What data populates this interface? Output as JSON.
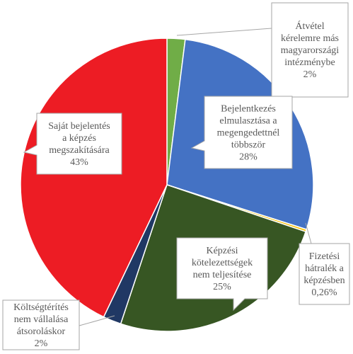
{
  "chart_data": {
    "type": "pie",
    "title": "",
    "legend": "none",
    "series": [
      {
        "slices": [
          {
            "label": "Átvétel kérelemre más magyarországi intézménybe",
            "lines": [
              "Átvétel",
              "kérelemre más",
              "magyarországi",
              "intézménybe",
              "2%"
            ],
            "value": 2,
            "color": "#70ad47"
          },
          {
            "label": "Bejelentkezés elmulasztása a megengedettnél többször",
            "lines": [
              "Bejelentkezés",
              "elmulasztása a",
              "megengedettnél",
              "többször",
              "28%"
            ],
            "value": 28,
            "color": "#4472c4"
          },
          {
            "label": "Fizetési hátralék a képzésben",
            "lines": [
              "Fizetési",
              "hátralék a",
              "képzésben",
              "0,26%"
            ],
            "value": 0.26,
            "color": "#ffc000"
          },
          {
            "label": "Képzési kötelezettségek nem teljesítése",
            "lines": [
              "Képzési",
              "kötelezettségek",
              "nem teljesítése",
              "25%"
            ],
            "value": 25,
            "color": "#375623"
          },
          {
            "label": "Költségtérítés nem vállalása átsoroláskor",
            "lines": [
              "Költségtérítés",
              "nem vállalása",
              "átsoroláskor",
              "2%"
            ],
            "value": 2,
            "color": "#203864"
          },
          {
            "label": "Saját bejelentés a képzés megszakítására",
            "lines": [
              "Saját bejelentés",
              "a képzés",
              "megszakítására",
              "43%"
            ],
            "value": 43,
            "color": "#ed1c24"
          }
        ]
      }
    ]
  }
}
